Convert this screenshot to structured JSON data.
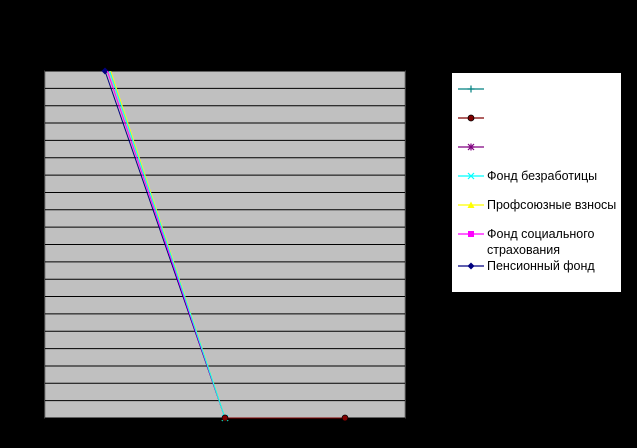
{
  "chart_data": {
    "type": "line",
    "title": "",
    "xlabel": "",
    "ylabel": "",
    "x": [
      1,
      2,
      3
    ],
    "xlim": [
      0.5,
      3.5
    ],
    "ylim": [
      0,
      100
    ],
    "grid_lines_y": 20,
    "plot_background": "#c0c0c0",
    "legend_position": "right",
    "series": [
      {
        "name": "",
        "color": "#008080",
        "marker": "plus",
        "values": [
          null,
          null,
          null
        ]
      },
      {
        "name": "",
        "color": "#800000",
        "marker": "circle",
        "values": [
          null,
          0,
          0
        ]
      },
      {
        "name": "",
        "color": "#800080",
        "marker": "star",
        "values": [
          null,
          null,
          null
        ]
      },
      {
        "name": "Фонд безработицы",
        "color": "#00ffff",
        "marker": "x",
        "values": [
          104,
          0,
          null
        ]
      },
      {
        "name": "Профсоюзные взносы",
        "color": "#ffff00",
        "marker": "triangle",
        "values": [
          105,
          0,
          null
        ]
      },
      {
        "name": "Фонд социального страхования",
        "color": "#ff00ff",
        "marker": "square",
        "values": [
          102,
          0,
          null
        ]
      },
      {
        "name": "Пенсионный фонд",
        "color": "#000080",
        "marker": "diamond",
        "values": [
          100,
          0,
          null
        ]
      }
    ]
  }
}
